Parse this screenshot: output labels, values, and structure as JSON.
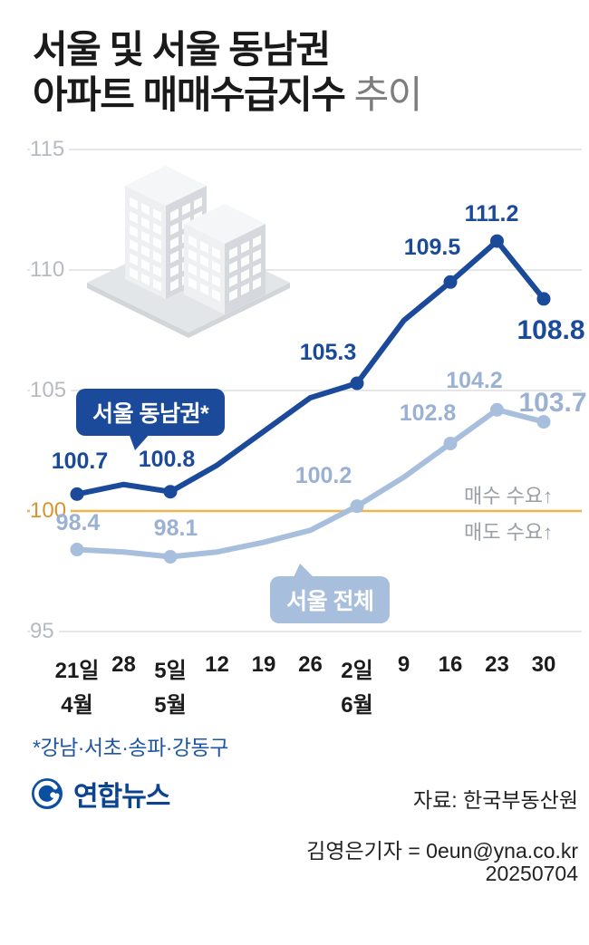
{
  "title": {
    "line1": "서울 및 서울 동남권",
    "line2_bold": "아파트 매매수급지수",
    "line2_light": "추이"
  },
  "chart_data": {
    "type": "line",
    "x_labels": [
      "21일",
      "28",
      "5일",
      "12",
      "19",
      "26",
      "2일",
      "9",
      "16",
      "23",
      "30"
    ],
    "month_labels": [
      {
        "index": 0,
        "label": "4월"
      },
      {
        "index": 2,
        "label": "5월"
      },
      {
        "index": 6,
        "label": "6월"
      }
    ],
    "ylim": [
      95,
      115
    ],
    "yticks": [
      115,
      110,
      105,
      100,
      95
    ],
    "baseline": 100,
    "series": [
      {
        "key": "se",
        "name": "서울 동남권*",
        "color": "#1b4a9b",
        "values": [
          100.7,
          101.1,
          100.8,
          101.9,
          103.3,
          104.7,
          105.3,
          107.9,
          109.5,
          111.2,
          108.8
        ],
        "labeled_indices": [
          0,
          2,
          6,
          8,
          9,
          10
        ]
      },
      {
        "key": "all",
        "name": "서울 전체",
        "color": "#a7bedd",
        "label_color": "#9bb1d4",
        "values": [
          98.4,
          98.3,
          98.1,
          98.3,
          98.7,
          99.2,
          100.2,
          101.4,
          102.8,
          104.2,
          103.7
        ],
        "labeled_indices": [
          0,
          2,
          6,
          8,
          9,
          10
        ]
      }
    ],
    "annotations": {
      "above_baseline": "매수 수요↑",
      "below_baseline": "매도 수요↑"
    }
  },
  "callouts": {
    "southeast": "서울 동남권*",
    "seoul_all": "서울 전체"
  },
  "footnote": "*강남·서초·송파·강동구",
  "footer": {
    "logo_text": "연합뉴스",
    "source": "자료: 한국부동산원",
    "credit": "김영은기자 = 0eun@yna.co.kr",
    "date": "20250704"
  },
  "colors": {
    "dark_series": "#1b4a9b",
    "light_series": "#a7bedd",
    "baseline": "#f0b44c",
    "gridline": "#dcdee0",
    "tick_text": "#b7bbc0",
    "baseline_tick_text": "#d8942e"
  }
}
